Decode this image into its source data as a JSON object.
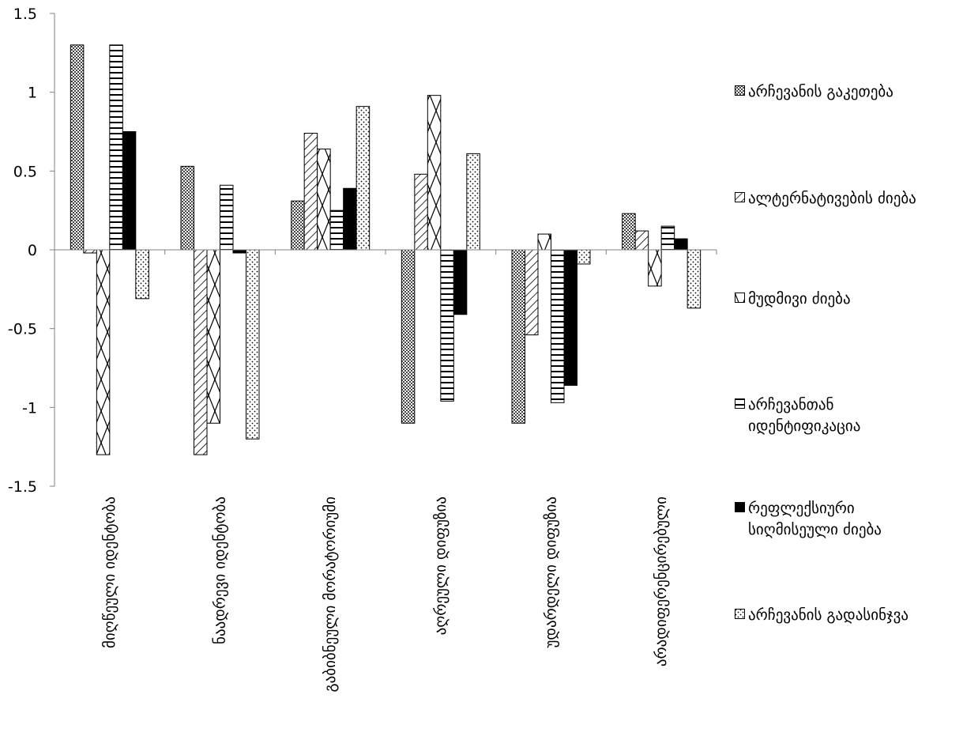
{
  "chart_data": {
    "type": "bar",
    "categories": [
      "მიღწეული იდენტობა",
      "ნაადრევი იდენტობა",
      "გაბიბნეული მორატორიუმი",
      "აღრეული დიფუზია",
      "უდარდელი დიფუზია",
      "არადიფერენცირებული"
    ],
    "series": [
      {
        "name": "არჩევანის გაკეთება",
        "pattern": "crosshatch",
        "values": [
          1.3,
          0.53,
          0.31,
          -1.1,
          -1.1,
          0.23
        ]
      },
      {
        "name": "ალტერნატივების ძიება",
        "pattern": "diagonal",
        "values": [
          -0.02,
          -1.3,
          0.74,
          0.48,
          -0.54,
          0.12
        ]
      },
      {
        "name": "მუდმივი ძიება",
        "pattern": "diamond",
        "values": [
          -1.3,
          -1.1,
          0.64,
          0.98,
          0.1,
          -0.23
        ]
      },
      {
        "name": "არჩევანთან იდენტიფიკაცია",
        "pattern": "horizontal",
        "values": [
          1.3,
          0.41,
          0.25,
          -0.96,
          -0.97,
          0.15
        ]
      },
      {
        "name": "რეფლექსიური სიღმისეული ძიება",
        "pattern": "solid",
        "values": [
          0.75,
          -0.02,
          0.39,
          -0.41,
          -0.86,
          0.07
        ]
      },
      {
        "name": "არჩევანის გადასინჯვა",
        "pattern": "dots",
        "values": [
          -0.31,
          -1.2,
          0.91,
          0.61,
          -0.09,
          -0.37
        ]
      }
    ],
    "ylim": [
      -1.5,
      1.5
    ],
    "yticks": [
      "1.5",
      "1",
      "0.5",
      "0",
      "-0.5",
      "-1",
      "-1.5"
    ],
    "grid": false,
    "legend_position": "right",
    "colors": {
      "bar_stroke": "#000000",
      "solid_fill": "#000000",
      "background": "#ffffff"
    }
  }
}
